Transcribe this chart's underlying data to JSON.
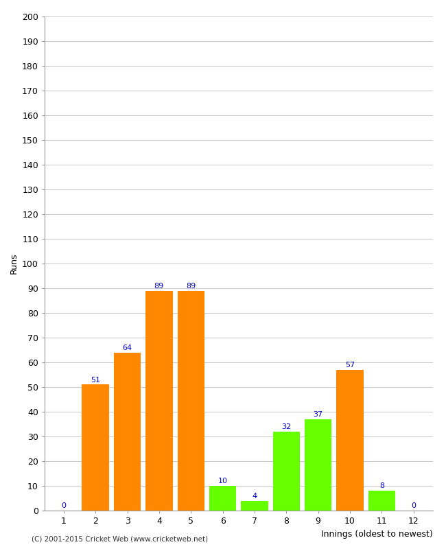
{
  "innings": [
    1,
    2,
    3,
    4,
    5,
    6,
    7,
    8,
    9,
    10,
    11,
    12
  ],
  "values": [
    0,
    51,
    64,
    89,
    89,
    10,
    4,
    32,
    37,
    57,
    8,
    0
  ],
  "bar_colors": [
    "#ff8800",
    "#ff8800",
    "#ff8800",
    "#ff8800",
    "#ff8800",
    "#66ff00",
    "#66ff00",
    "#66ff00",
    "#66ff00",
    "#ff8800",
    "#66ff00",
    "#ff8800"
  ],
  "xlabel": "Innings (oldest to newest)",
  "ylabel": "Runs",
  "ylim": [
    0,
    200
  ],
  "yticks": [
    0,
    10,
    20,
    30,
    40,
    50,
    60,
    70,
    80,
    90,
    100,
    110,
    120,
    130,
    140,
    150,
    160,
    170,
    180,
    190,
    200
  ],
  "label_color": "#0000cc",
  "footer": "(C) 2001-2015 Cricket Web (www.cricketweb.net)",
  "bg_color": "#ffffff",
  "grid_color": "#cccccc"
}
